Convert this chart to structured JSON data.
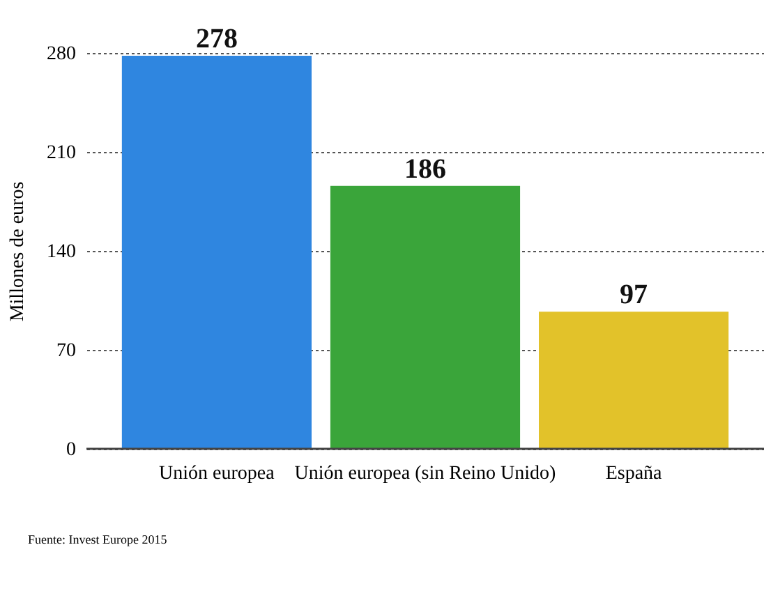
{
  "chart_data": {
    "type": "bar",
    "ylabel": "Millones de euros",
    "categories": [
      "Unión europea",
      "Unión europea (sin Reino Unido)",
      "España"
    ],
    "values": [
      278,
      186,
      97
    ],
    "colors": [
      "#2f86e0",
      "#3aa53a",
      "#e2c22a"
    ],
    "ylim": [
      0,
      280
    ],
    "yticks": [
      0,
      70,
      140,
      210,
      280
    ],
    "grid": "y",
    "data_labels": true,
    "annotations": [
      "Fuente: Invest Europe 2015"
    ]
  }
}
